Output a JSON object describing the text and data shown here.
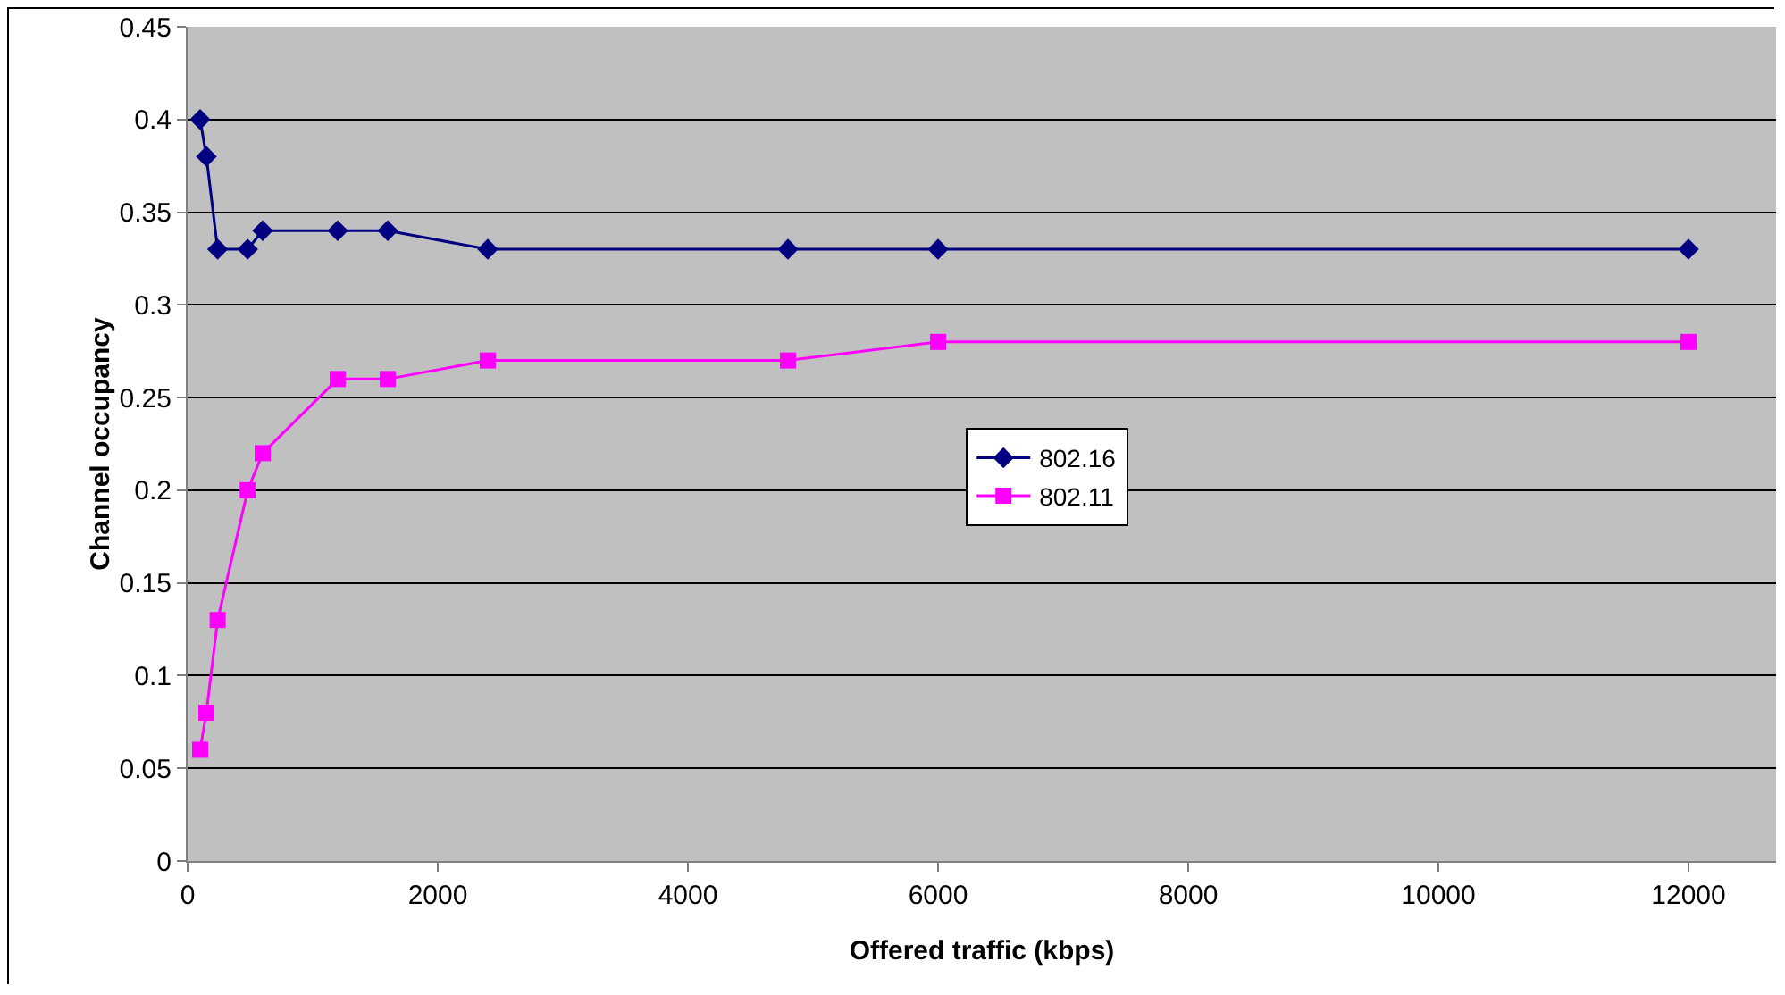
{
  "chart_data": {
    "type": "line",
    "xlabel": "Offered traffic (kbps)",
    "ylabel": "Channel occupancy",
    "x": [
      100,
      150,
      240,
      480,
      600,
      1200,
      1600,
      2400,
      4800,
      6000,
      12000
    ],
    "series": [
      {
        "name": "802.16",
        "color": "#000080",
        "marker": "diamond",
        "values": [
          0.4,
          0.38,
          0.33,
          0.33,
          0.34,
          0.34,
          0.34,
          0.33,
          0.33,
          0.33,
          0.33
        ]
      },
      {
        "name": "802.11",
        "color": "#ff00ff",
        "marker": "square",
        "values": [
          0.06,
          0.08,
          0.13,
          0.2,
          0.22,
          0.26,
          0.26,
          0.27,
          0.27,
          0.28,
          0.28
        ]
      }
    ],
    "xlim": [
      0,
      12700
    ],
    "xticks": [
      0,
      2000,
      4000,
      6000,
      8000,
      10000,
      12000
    ],
    "ylim": [
      0,
      0.45
    ],
    "yticks": [
      0,
      0.05,
      0.1,
      0.15,
      0.2,
      0.25,
      0.3,
      0.35,
      0.4,
      0.45
    ],
    "grid": "y",
    "legend": "right",
    "line_style": "solid"
  }
}
